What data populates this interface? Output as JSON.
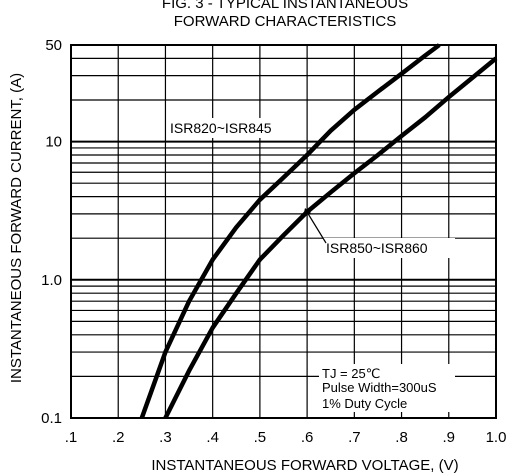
{
  "chart_data": {
    "type": "line",
    "title_lines": [
      "FIG. 3 - TYPICAL INSTANTANEOUS",
      "FORWARD CHARACTERISTICS"
    ],
    "xlabel": "INSTANTANEOUS FORWARD VOLTAGE, (V)",
    "ylabel": "INSTANTANEOUS FORWARD CURRENT, (A)",
    "x_scale": "linear",
    "y_scale": "log",
    "xlim": [
      0.1,
      1.0
    ],
    "ylim": [
      0.1,
      50
    ],
    "x_ticks": [
      0.1,
      0.2,
      0.3,
      0.4,
      0.5,
      0.6,
      0.7,
      0.8,
      0.9,
      1.0
    ],
    "x_tick_labels": [
      ".1",
      ".2",
      ".3",
      ".4",
      ".5",
      ".6",
      ".7",
      ".8",
      ".9",
      "1.0"
    ],
    "y_tick_values": [
      0.1,
      1.0,
      10,
      50
    ],
    "y_tick_labels": [
      "0.1",
      "1.0",
      "10",
      "50"
    ],
    "grid": true,
    "series": [
      {
        "name": "ISR820~ISR845",
        "x": [
          0.25,
          0.3,
          0.35,
          0.4,
          0.45,
          0.5,
          0.55,
          0.6,
          0.65,
          0.7,
          0.75,
          0.8,
          0.85,
          0.88
        ],
        "y": [
          0.1,
          0.3,
          0.7,
          1.4,
          2.4,
          3.8,
          5.5,
          8.0,
          12,
          17,
          23,
          31,
          42,
          50
        ]
      },
      {
        "name": "ISR850~ISR860",
        "x": [
          0.3,
          0.35,
          0.4,
          0.45,
          0.5,
          0.55,
          0.6,
          0.65,
          0.7,
          0.75,
          0.8,
          0.85,
          0.9,
          0.95,
          1.0
        ],
        "y": [
          0.1,
          0.22,
          0.45,
          0.8,
          1.4,
          2.1,
          3.1,
          4.3,
          5.9,
          8.0,
          11,
          15,
          21,
          29,
          40
        ]
      }
    ],
    "annotations": [
      "TJ = 25℃",
      "Pulse Width=300uS",
      "1% Duty Cycle"
    ]
  }
}
